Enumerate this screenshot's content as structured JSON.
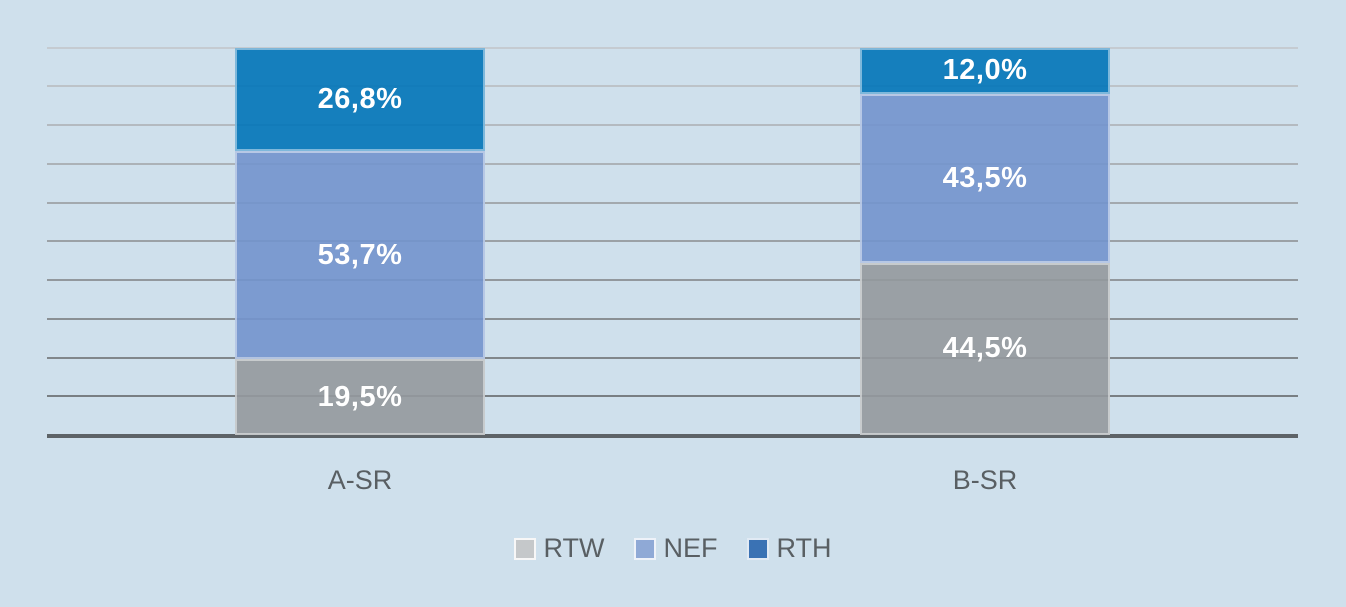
{
  "chart_data": {
    "type": "bar",
    "stacked": true,
    "orientation": "vertical",
    "title": "",
    "xlabel": "",
    "ylabel": "",
    "ylim": [
      0,
      100
    ],
    "gridline_step": 10,
    "grid": true,
    "categories": [
      "A-SR",
      "B-SR"
    ],
    "series": [
      {
        "name": "RTW",
        "values": [
          19.5,
          44.5
        ],
        "labels": [
          "19,5%",
          "44,5%"
        ],
        "color": "#94999d",
        "legend_color": "#c5c8ca"
      },
      {
        "name": "NEF",
        "values": [
          53.7,
          43.5
        ],
        "labels": [
          "53,7%",
          "43,5%"
        ],
        "color": "#7294cd",
        "legend_color": "#8fa9d6"
      },
      {
        "name": "RTH",
        "values": [
          26.8,
          12.0
        ],
        "labels": [
          "26,8%",
          "12,0%"
        ],
        "color": "#0074b8",
        "legend_color": "#3a72b4"
      }
    ],
    "legend": {
      "position": "bottom",
      "items": [
        "RTW",
        "NEF",
        "RTH"
      ]
    }
  },
  "colors": {
    "background": "#cfe0ec",
    "axis_line": "#5d6367",
    "gridline_top": "#c5cbd1",
    "gridline_bottom": "#70767a",
    "category_text": "#595f63",
    "value_text": "#ffffff"
  }
}
